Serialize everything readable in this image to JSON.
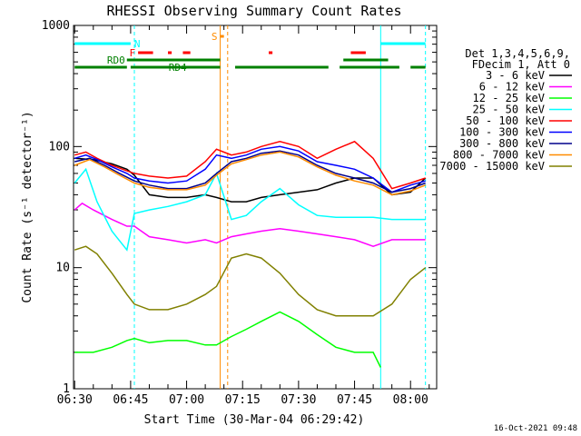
{
  "chart_data": {
    "type": "line",
    "title": "RHESSI Observing Summary Count Rates",
    "xlabel": "Start Time (30-Mar-04 06:29:42)",
    "ylabel": "Count Rate (s⁻¹ detector⁻¹)",
    "y_scale": "log",
    "ylim": [
      1,
      1000
    ],
    "xlim": [
      "06:29:42",
      "08:07:00"
    ],
    "y_ticks": [
      {
        "value": 1,
        "label": "1"
      },
      {
        "value": 10,
        "label": "10"
      },
      {
        "value": 100,
        "label": "100"
      },
      {
        "value": 1000,
        "label": "1000"
      }
    ],
    "x_ticks": [
      {
        "value": "06:30",
        "label": "06:30"
      },
      {
        "value": "06:45",
        "label": "06:45"
      },
      {
        "value": "07:00",
        "label": "07:00"
      },
      {
        "value": "07:15",
        "label": "07:15"
      },
      {
        "value": "07:30",
        "label": "07:30"
      },
      {
        "value": "07:45",
        "label": "07:45"
      },
      {
        "value": "08:00",
        "label": "08:00"
      }
    ],
    "legend_header": [
      "Det 1,3,4,5,6,9,",
      "FDecim 1, Att 0"
    ],
    "legend_position": "right",
    "footer_date": "16-Oct-2021 09:48",
    "series": [
      {
        "name": "3 - 6 keV",
        "color": "#000000",
        "x": [
          "06:30",
          "06:35",
          "06:40",
          "06:44",
          "06:46",
          "06:50",
          "06:55",
          "07:00",
          "07:05",
          "07:08",
          "07:12",
          "07:16",
          "07:20",
          "07:25",
          "07:30",
          "07:35",
          "07:40",
          "07:45",
          "07:50",
          "07:55",
          "08:00",
          "08:04"
        ],
        "y": [
          80,
          78,
          72,
          65,
          58,
          40,
          38,
          38,
          40,
          38,
          35,
          35,
          38,
          40,
          42,
          44,
          50,
          55,
          55,
          40,
          42,
          55
        ]
      },
      {
        "name": "6 - 12 keV",
        "color": "#ff00ff",
        "x": [
          "06:30",
          "06:32",
          "06:35",
          "06:40",
          "06:44",
          "06:46",
          "06:50",
          "06:55",
          "07:00",
          "07:05",
          "07:08",
          "07:12",
          "07:16",
          "07:20",
          "07:25",
          "07:30",
          "07:35",
          "07:40",
          "07:45",
          "07:50",
          "07:55",
          "08:00",
          "08:04"
        ],
        "y": [
          30,
          34,
          30,
          25,
          22,
          22,
          18,
          17,
          16,
          17,
          16,
          18,
          19,
          20,
          21,
          20,
          19,
          18,
          17,
          15,
          17,
          17,
          17
        ]
      },
      {
        "name": "12 - 25 keV",
        "color": "#00ff00",
        "x": [
          "06:30",
          "06:35",
          "06:40",
          "06:44",
          "06:46",
          "06:50",
          "06:55",
          "07:00",
          "07:05",
          "07:08",
          "07:12",
          "07:16",
          "07:20",
          "07:25",
          "07:30",
          "07:35",
          "07:40",
          "07:45",
          "07:50",
          "07:52"
        ],
        "y": [
          2,
          2,
          2.2,
          2.5,
          2.6,
          2.4,
          2.5,
          2.5,
          2.3,
          2.3,
          2.7,
          3.1,
          3.6,
          4.3,
          3.6,
          2.8,
          2.2,
          2,
          2,
          1.5
        ]
      },
      {
        "name": "25 - 50 keV",
        "color": "#00ffff",
        "x": [
          "06:30",
          "06:33",
          "06:36",
          "06:40",
          "06:44",
          "06:46",
          "06:50",
          "06:55",
          "07:00",
          "07:05",
          "07:08",
          "07:12",
          "07:16",
          "07:20",
          "07:25",
          "07:30",
          "07:35",
          "07:40",
          "07:45",
          "07:50",
          "07:55",
          "08:00",
          "08:04"
        ],
        "y": [
          50,
          65,
          35,
          20,
          14,
          28,
          30,
          32,
          35,
          40,
          60,
          25,
          27,
          35,
          45,
          33,
          27,
          26,
          26,
          26,
          25,
          25,
          25
        ]
      },
      {
        "name": "50 - 100 keV",
        "color": "#ff0000",
        "x": [
          "06:30",
          "06:33",
          "06:36",
          "06:40",
          "06:44",
          "06:46",
          "06:50",
          "06:55",
          "07:00",
          "07:05",
          "07:08",
          "07:12",
          "07:16",
          "07:20",
          "07:25",
          "07:30",
          "07:35",
          "07:40",
          "07:45",
          "07:50",
          "07:55",
          "08:00",
          "08:04"
        ],
        "y": [
          85,
          90,
          80,
          70,
          63,
          60,
          57,
          55,
          57,
          75,
          95,
          85,
          90,
          100,
          110,
          100,
          80,
          95,
          110,
          80,
          45,
          50,
          55
        ]
      },
      {
        "name": "100 - 300 keV",
        "color": "#0000ff",
        "x": [
          "06:30",
          "06:33",
          "06:36",
          "06:40",
          "06:44",
          "06:46",
          "06:50",
          "06:55",
          "07:00",
          "07:05",
          "07:08",
          "07:12",
          "07:16",
          "07:20",
          "07:25",
          "07:30",
          "07:35",
          "07:40",
          "07:45",
          "07:50",
          "07:55",
          "08:00",
          "08:04"
        ],
        "y": [
          80,
          85,
          78,
          68,
          60,
          55,
          52,
          50,
          52,
          65,
          85,
          80,
          85,
          95,
          100,
          92,
          75,
          70,
          65,
          55,
          42,
          48,
          52
        ]
      },
      {
        "name": "300 - 800 keV",
        "color": "#00008b",
        "x": [
          "06:30",
          "06:34",
          "06:38",
          "06:42",
          "06:46",
          "06:50",
          "06:55",
          "07:00",
          "07:05",
          "07:08",
          "07:12",
          "07:16",
          "07:20",
          "07:25",
          "07:30",
          "07:35",
          "07:40",
          "07:45",
          "07:50",
          "07:55",
          "08:00",
          "08:04"
        ],
        "y": [
          75,
          80,
          70,
          60,
          52,
          48,
          45,
          45,
          50,
          60,
          75,
          80,
          88,
          92,
          85,
          70,
          60,
          55,
          50,
          42,
          45,
          50
        ]
      },
      {
        "name": "800 - 7000 keV",
        "color": "#ff8c00",
        "x": [
          "06:30",
          "06:34",
          "06:38",
          "06:42",
          "06:46",
          "06:50",
          "06:55",
          "07:00",
          "07:05",
          "07:08",
          "07:12",
          "07:16",
          "07:20",
          "07:25",
          "07:30",
          "07:35",
          "07:40",
          "07:45",
          "07:50",
          "07:55",
          "08:00",
          "08:04"
        ],
        "y": [
          70,
          78,
          68,
          58,
          50,
          46,
          44,
          44,
          48,
          58,
          72,
          78,
          85,
          90,
          82,
          68,
          58,
          52,
          48,
          40,
          43,
          48
        ]
      },
      {
        "name": "7000 - 15000 keV",
        "color": "#808000",
        "x": [
          "06:30",
          "06:33",
          "06:36",
          "06:40",
          "06:44",
          "06:46",
          "06:50",
          "06:55",
          "07:00",
          "07:05",
          "07:08",
          "07:12",
          "07:16",
          "07:20",
          "07:25",
          "07:30",
          "07:35",
          "07:40",
          "07:45",
          "07:50",
          "07:55",
          "08:00",
          "08:04"
        ],
        "y": [
          14,
          15,
          13,
          9,
          6,
          5,
          4.5,
          4.5,
          5,
          6,
          7,
          12,
          13,
          12,
          9,
          6,
          4.5,
          4,
          4,
          4,
          5,
          8,
          10
        ]
      }
    ],
    "vertical_lines": [
      {
        "time": "06:46",
        "color": "#00ffff",
        "style": "dashed"
      },
      {
        "time": "07:09",
        "color": "#ff8c00",
        "style": "solid"
      },
      {
        "time": "07:11",
        "color": "#ff8c00",
        "style": "dashed"
      },
      {
        "time": "07:52",
        "color": "#00ffff",
        "style": "solid"
      },
      {
        "time": "08:04",
        "color": "#00ffff",
        "style": "dashed"
      }
    ],
    "flag_bars": [
      {
        "label": "N",
        "color": "#00ffff",
        "row": 0,
        "segments": [
          [
            "06:30",
            "06:45"
          ],
          [
            "07:52",
            "08:04"
          ]
        ]
      },
      {
        "label": "S",
        "color": "#ff8c00",
        "row": -1,
        "segments": [
          [
            "07:09",
            "07:10"
          ]
        ]
      },
      {
        "label": "F",
        "color": "#ff0000",
        "row": 1,
        "segments": [
          [
            "06:47",
            "06:51"
          ],
          [
            "06:55",
            "06:56"
          ],
          [
            "06:59",
            "07:01"
          ],
          [
            "07:22",
            "07:23"
          ],
          [
            "07:44",
            "07:48"
          ]
        ]
      },
      {
        "label": "RD0",
        "color": "#008000",
        "row": 2,
        "segments": [
          [
            "06:44",
            "07:09"
          ],
          [
            "07:42",
            "07:54"
          ]
        ]
      },
      {
        "label": "RD4",
        "color": "#008000",
        "row": 3,
        "segments": [
          [
            "06:30",
            "06:44"
          ],
          [
            "06:45",
            "07:09"
          ],
          [
            "07:13",
            "07:38"
          ],
          [
            "07:41",
            "07:57"
          ],
          [
            "08:00",
            "08:04"
          ]
        ]
      }
    ]
  }
}
